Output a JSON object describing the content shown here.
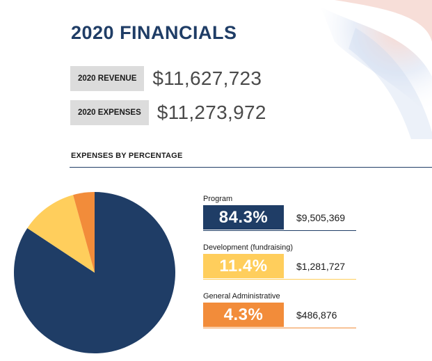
{
  "page": {
    "title": "2020 FINANCIALS",
    "revenue": {
      "label": "2020 REVENUE",
      "value": "$11,627,723"
    },
    "expenses": {
      "label": "2020 EXPENSES",
      "value": "$11,273,972"
    },
    "section_title": "EXPENSES BY PERCENTAGE"
  },
  "chart_data": {
    "type": "pie",
    "title": "",
    "categories": [
      "Program",
      "Development (fundraising)",
      "General Administrative"
    ],
    "values": [
      84.3,
      11.4,
      4.3
    ],
    "percent_labels": [
      "84.3%",
      "11.4%",
      "4.3%"
    ],
    "amounts": [
      "$9,505,369",
      "$1,281,727",
      "$486,876"
    ],
    "colors": [
      "#1f3d66",
      "#ffce5c",
      "#f28c3a"
    ],
    "legend_placement": "right"
  }
}
